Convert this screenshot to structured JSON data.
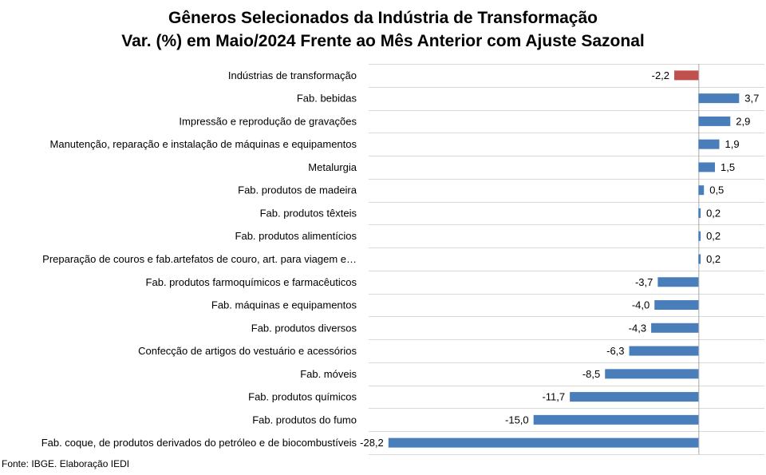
{
  "chart_data": {
    "type": "bar",
    "orientation": "horizontal",
    "title": "Gêneros Selecionados da Indústria de Transformação",
    "subtitle": "Var. (%) em Maio/2024 Frente ao Mês Anterior com Ajuste Sazonal",
    "categories": [
      "Indústrias de transformação",
      "Fab. bebidas",
      "Impressão e reprodução de gravações",
      "Manutenção, reparação e instalação de máquinas e equipamentos",
      "Metalurgia",
      "Fab. produtos de madeira",
      "Fab. produtos têxteis",
      "Fab. produtos alimentícios",
      "Preparação de couros e fab.artefatos de couro, art. para viagem e…",
      "Fab. produtos farmoquímicos e farmacêuticos",
      "Fab. máquinas e equipamentos",
      "Fab. produtos diversos",
      "Confecção de artigos do vestuário e acessórios",
      "Fab. móveis",
      "Fab. produtos químicos",
      "Fab. produtos do fumo",
      "Fab. coque, de produtos derivados do petróleo e de biocombustíveis"
    ],
    "values": [
      -2.2,
      3.7,
      2.9,
      1.9,
      1.5,
      0.5,
      0.2,
      0.2,
      0.2,
      -3.7,
      -4.0,
      -4.3,
      -6.3,
      -8.5,
      -11.7,
      -15.0,
      -28.2
    ],
    "value_labels": [
      "-2,2",
      "3,7",
      "2,9",
      "1,9",
      "1,5",
      "0,5",
      "0,2",
      "0,2",
      "0,2",
      "-3,7",
      "-4,0",
      "-4,3",
      "-6,3",
      "-8,5",
      "-11,7",
      "-15,0",
      "-28,2"
    ],
    "highlight_index": 0,
    "xlim": [
      -30,
      6
    ],
    "grid": "horizontal",
    "colors": {
      "bar": "#4a7ebb",
      "highlight": "#c0504d",
      "grid": "#d9d9d9",
      "axis": "#a6a6a6"
    }
  },
  "source": "Fonte: IBGE. Elaboração IEDI"
}
